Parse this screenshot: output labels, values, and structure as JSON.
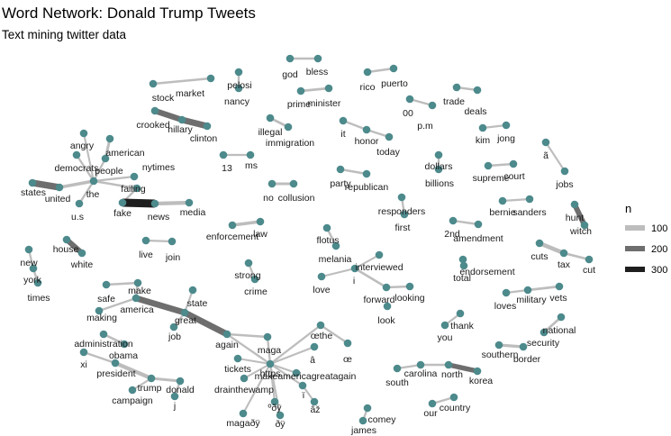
{
  "title": "Word Network: Donald Trump Tweets",
  "subtitle": "Text mining twitter data",
  "legend": {
    "title": "n",
    "items": [
      {
        "label": "100",
        "color": "#bdbdbd"
      },
      {
        "label": "200",
        "color": "#6e6e6e"
      },
      {
        "label": "300",
        "color": "#1e1e1e"
      }
    ]
  },
  "colors": {
    "node": "#4d8a8c"
  },
  "words": [
    "market",
    "stock",
    "pelosi",
    "nancy",
    "god",
    "bless",
    "rico",
    "puerto",
    "prime",
    "minister",
    "00",
    "p.m",
    "trade",
    "deals",
    "crooked",
    "hillary",
    "clinton",
    "illegal",
    "immigration",
    "it",
    "honor",
    "today",
    "kim",
    "jong",
    "angry",
    "american",
    "people",
    "democrats",
    "nytimes",
    "13",
    "ms",
    "ã",
    "states",
    "united",
    "the",
    "failing",
    "u.s",
    "fake",
    "news",
    "media",
    "no",
    "collusion",
    "party",
    "republican",
    "dollars",
    "billions",
    "supreme",
    "court",
    "jobs",
    "bernie",
    "sanders",
    "hunt",
    "witch",
    "responders",
    "first",
    "enforcement",
    "law",
    "2nd",
    "amendment",
    "flotus",
    "melania",
    "house",
    "white",
    "live",
    "join",
    "new",
    "york",
    "times",
    "cuts",
    "tax",
    "cut",
    "strong",
    "crime",
    "interviewed",
    "love",
    "i",
    "forward",
    "looking",
    "endorsement",
    "total",
    "look",
    "make",
    "safe",
    "state",
    "america",
    "great",
    "military",
    "vets",
    "loves",
    "making",
    "job",
    "national",
    "security",
    "thank",
    "you",
    "administration",
    "obama",
    "xi",
    "president",
    "again",
    "maga",
    "œthe",
    "â",
    "œ",
    "tickets",
    "https",
    "southern",
    "border",
    "trump",
    "donald",
    "j",
    "campaign",
    "drainthewamp",
    "makeamericagreatagain",
    "ï",
    "âž",
    "carolina",
    "north",
    "south",
    "korea",
    "country",
    "our",
    "comey",
    "james",
    "ºðÿ",
    "magaðÿ",
    "ðÿ"
  ],
  "edges": [
    {
      "from": "stock",
      "to": "market",
      "n": 70
    },
    {
      "from": "pelosi",
      "to": "nancy",
      "n": 60
    },
    {
      "from": "god",
      "to": "bless",
      "n": 75
    },
    {
      "from": "rico",
      "to": "puerto",
      "n": 70
    },
    {
      "from": "prime",
      "to": "minister",
      "n": 80
    },
    {
      "from": "00",
      "to": "p.m",
      "n": 60
    },
    {
      "from": "trade",
      "to": "deals",
      "n": 70
    },
    {
      "from": "crooked",
      "to": "hillary",
      "n": 220
    },
    {
      "from": "hillary",
      "to": "clinton",
      "n": 240
    },
    {
      "from": "illegal",
      "to": "immigration",
      "n": 80
    },
    {
      "from": "it",
      "to": "honor",
      "n": 65
    },
    {
      "from": "honor",
      "to": "today",
      "n": 65
    },
    {
      "from": "kim",
      "to": "jong",
      "n": 60
    },
    {
      "from": "american",
      "to": "people",
      "n": 90
    },
    {
      "from": "democrats",
      "to": "the",
      "n": 60
    },
    {
      "from": "angry",
      "to": "the",
      "n": 55
    },
    {
      "from": "people",
      "to": "the",
      "n": 60
    },
    {
      "from": "nytimes",
      "to": "the",
      "n": 60
    },
    {
      "from": "the",
      "to": "u.s",
      "n": 65
    },
    {
      "from": "13",
      "to": "ms",
      "n": 60
    },
    {
      "from": "states",
      "to": "united",
      "n": 260
    },
    {
      "from": "united",
      "to": "the",
      "n": 110
    },
    {
      "from": "the",
      "to": "failing",
      "n": 70
    },
    {
      "from": "failing",
      "to": "fake",
      "n": 60
    },
    {
      "from": "fake",
      "to": "news",
      "n": 320
    },
    {
      "from": "news",
      "to": "media",
      "n": 140
    },
    {
      "from": "no",
      "to": "collusion",
      "n": 85
    },
    {
      "from": "party",
      "to": "republican",
      "n": 70
    },
    {
      "from": "dollars",
      "to": "billions",
      "n": 60
    },
    {
      "from": "supreme",
      "to": "court",
      "n": 75
    },
    {
      "from": "ã",
      "to": "jobs",
      "n": 55
    },
    {
      "from": "bernie",
      "to": "sanders",
      "n": 60
    },
    {
      "from": "hunt",
      "to": "witch",
      "n": 200
    },
    {
      "from": "responders",
      "to": "first",
      "n": 60
    },
    {
      "from": "enforcement",
      "to": "law",
      "n": 110
    },
    {
      "from": "2nd",
      "to": "amendment",
      "n": 65
    },
    {
      "from": "flotus",
      "to": "melania",
      "n": 70
    },
    {
      "from": "house",
      "to": "white",
      "n": 200
    },
    {
      "from": "live",
      "to": "join",
      "n": 60
    },
    {
      "from": "new",
      "to": "york",
      "n": 60
    },
    {
      "from": "york",
      "to": "times",
      "n": 60
    },
    {
      "from": "cuts",
      "to": "tax",
      "n": 150
    },
    {
      "from": "tax",
      "to": "cut",
      "n": 75
    },
    {
      "from": "strong",
      "to": "crime",
      "n": 60
    },
    {
      "from": "interviewed",
      "to": "i",
      "n": 55
    },
    {
      "from": "love",
      "to": "i",
      "n": 55
    },
    {
      "from": "i",
      "to": "forward",
      "n": 70
    },
    {
      "from": "forward",
      "to": "looking",
      "n": 70
    },
    {
      "from": "endorsement",
      "to": "total",
      "n": 75
    },
    {
      "from": "make",
      "to": "safe",
      "n": 70
    },
    {
      "from": "make",
      "to": "america",
      "n": 80
    },
    {
      "from": "america",
      "to": "great",
      "n": 240
    },
    {
      "from": "great",
      "to": "again",
      "n": 240
    },
    {
      "from": "state",
      "to": "great",
      "n": 55
    },
    {
      "from": "great",
      "to": "job",
      "n": 55
    },
    {
      "from": "making",
      "to": "america",
      "n": 60
    },
    {
      "from": "loves",
      "to": "military",
      "n": 60
    },
    {
      "from": "military",
      "to": "vets",
      "n": 80
    },
    {
      "from": "national",
      "to": "security",
      "n": 75
    },
    {
      "from": "southern",
      "to": "border",
      "n": 95
    },
    {
      "from": "thank",
      "to": "you",
      "n": 60
    },
    {
      "from": "administration",
      "to": "obama",
      "n": 75
    },
    {
      "from": "xi",
      "to": "president",
      "n": 60
    },
    {
      "from": "president",
      "to": "trump",
      "n": 140
    },
    {
      "from": "trump",
      "to": "donald",
      "n": 85
    },
    {
      "from": "donald",
      "to": "j",
      "n": 65
    },
    {
      "from": "campaign",
      "to": "trump",
      "n": 55
    },
    {
      "from": "again",
      "to": "maga",
      "n": 70
    },
    {
      "from": "again",
      "to": "https",
      "n": 60
    },
    {
      "from": "maga",
      "to": "https",
      "n": 60
    },
    {
      "from": "https",
      "to": "tickets",
      "n": 55
    },
    {
      "from": "https",
      "to": "drainthewamp",
      "n": 55
    },
    {
      "from": "https",
      "to": "makeamericagreatagain",
      "n": 55
    },
    {
      "from": "https",
      "to": "œthe",
      "n": 60
    },
    {
      "from": "https",
      "to": "â",
      "n": 55
    },
    {
      "from": "https",
      "to": "ï",
      "n": 55
    },
    {
      "from": "https",
      "to": "ºðÿ",
      "n": 55
    },
    {
      "from": "https",
      "to": "magaðÿ",
      "n": 55
    },
    {
      "from": "https",
      "to": "ðÿ",
      "n": 55
    },
    {
      "from": "œthe",
      "to": "œ",
      "n": 60
    },
    {
      "from": "ï",
      "to": "âž",
      "n": 55
    },
    {
      "from": "carolina",
      "to": "north",
      "n": 70
    },
    {
      "from": "north",
      "to": "korea",
      "n": 180
    },
    {
      "from": "south",
      "to": "carolina",
      "n": 60
    },
    {
      "from": "our",
      "to": "country",
      "n": 60
    },
    {
      "from": "comey",
      "to": "james",
      "n": 60
    }
  ]
}
